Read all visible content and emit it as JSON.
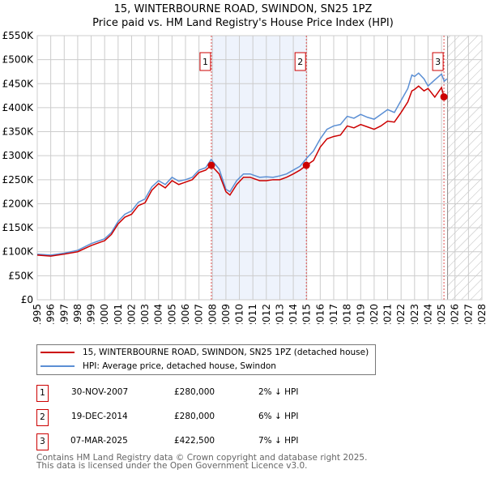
{
  "chart_data": {
    "type": "line",
    "title": "15, WINTERBOURNE ROAD, SWINDON, SN25 1PZ",
    "subtitle": "Price paid vs. HM Land Registry's House Price Index (HPI)",
    "xlim": [
      1995,
      2028
    ],
    "ylim": [
      0,
      550000
    ],
    "y_ticks": [
      "£0",
      "£50K",
      "£100K",
      "£150K",
      "£200K",
      "£250K",
      "£300K",
      "£350K",
      "£400K",
      "£450K",
      "£500K",
      "£550K"
    ],
    "x_ticks": [
      "1995",
      "1996",
      "1997",
      "1998",
      "1999",
      "2000",
      "2001",
      "2002",
      "2003",
      "2004",
      "2005",
      "2006",
      "2007",
      "2008",
      "2009",
      "2010",
      "2011",
      "2012",
      "2013",
      "2014",
      "2015",
      "2016",
      "2017",
      "2018",
      "2019",
      "2020",
      "2021",
      "2022",
      "2023",
      "2024",
      "2025",
      "2026",
      "2027",
      "2028"
    ],
    "grid": true,
    "series": [
      {
        "name": "15, WINTERBOURNE ROAD, SWINDON, SN25 1PZ (detached house)",
        "color": "#cc0000",
        "x": [
          1995,
          1996,
          1997,
          1998,
          1999,
          2000,
          2000.5,
          2001,
          2001.5,
          2002,
          2002.5,
          2003,
          2003.5,
          2004,
          2004.5,
          2005,
          2005.5,
          2006,
          2006.5,
          2007,
          2007.5,
          2007.9,
          2008.5,
          2009,
          2009.3,
          2009.8,
          2010.3,
          2010.8,
          2011.5,
          2012,
          2012.5,
          2013,
          2013.5,
          2014,
          2014.5,
          2014.97,
          2015.5,
          2016,
          2016.5,
          2017,
          2017.5,
          2018,
          2018.5,
          2019,
          2019.5,
          2020,
          2020.5,
          2021,
          2021.5,
          2022,
          2022.5,
          2022.8,
          2023,
          2023.3,
          2023.7,
          2024,
          2024.5,
          2025,
          2025.18
        ],
        "y": [
          93000,
          91000,
          95000,
          100000,
          113000,
          123000,
          136000,
          158000,
          172000,
          178000,
          196000,
          202000,
          228000,
          242000,
          233000,
          248000,
          240000,
          245000,
          250000,
          265000,
          270000,
          280000,
          262000,
          225000,
          218000,
          240000,
          255000,
          255000,
          248000,
          248000,
          250000,
          250000,
          255000,
          262000,
          270000,
          280000,
          290000,
          318000,
          335000,
          340000,
          343000,
          362000,
          358000,
          365000,
          360000,
          355000,
          362000,
          372000,
          370000,
          390000,
          412000,
          435000,
          438000,
          445000,
          435000,
          440000,
          422000,
          442000,
          422500
        ]
      },
      {
        "name": "HPI: Average price, detached house, Swindon",
        "color": "#5b8fd4",
        "x": [
          1995,
          1996,
          1997,
          1998,
          1999,
          2000,
          2000.5,
          2001,
          2001.5,
          2002,
          2002.5,
          2003,
          2003.5,
          2004,
          2004.5,
          2005,
          2005.5,
          2006,
          2006.5,
          2007,
          2007.5,
          2007.9,
          2008.5,
          2009,
          2009.3,
          2009.8,
          2010.3,
          2010.8,
          2011.5,
          2012,
          2012.5,
          2013,
          2013.5,
          2014,
          2014.5,
          2015,
          2015.5,
          2016,
          2016.5,
          2017,
          2017.5,
          2018,
          2018.5,
          2019,
          2019.5,
          2020,
          2020.5,
          2021,
          2021.5,
          2022,
          2022.5,
          2022.8,
          2023,
          2023.3,
          2023.7,
          2024,
          2024.5,
          2025,
          2025.2,
          2025.4
        ],
        "y": [
          95000,
          93000,
          97000,
          103000,
          117000,
          127000,
          140000,
          163000,
          178000,
          185000,
          203000,
          210000,
          235000,
          248000,
          240000,
          255000,
          247000,
          250000,
          255000,
          270000,
          275000,
          292000,
          272000,
          230000,
          225000,
          248000,
          262000,
          262000,
          255000,
          256000,
          255000,
          258000,
          262000,
          270000,
          278000,
          295000,
          310000,
          335000,
          355000,
          362000,
          365000,
          382000,
          378000,
          386000,
          380000,
          376000,
          386000,
          396000,
          390000,
          415000,
          440000,
          468000,
          465000,
          472000,
          460000,
          445000,
          458000,
          470000,
          455000,
          460000
        ]
      }
    ],
    "sales": [
      {
        "label": "1",
        "x": 2007.92,
        "price": 280000,
        "date": "30-NOV-2007",
        "price_text": "£280,000",
        "hpi_text": "2% ↓ HPI"
      },
      {
        "label": "2",
        "x": 2014.97,
        "price": 280000,
        "date": "19-DEC-2014",
        "price_text": "£280,000",
        "hpi_text": "6% ↓ HPI"
      },
      {
        "label": "3",
        "x": 2025.18,
        "price": 422500,
        "date": "07-MAR-2025",
        "price_text": "£422,500",
        "hpi_text": "7% ↓ HPI"
      }
    ],
    "shaded_range": [
      2007.92,
      2014.97
    ],
    "forecast_from": 2025.45
  },
  "footer": {
    "line1": "Contains HM Land Registry data © Crown copyright and database right 2025.",
    "line2": "This data is licensed under the Open Government Licence v3.0."
  }
}
